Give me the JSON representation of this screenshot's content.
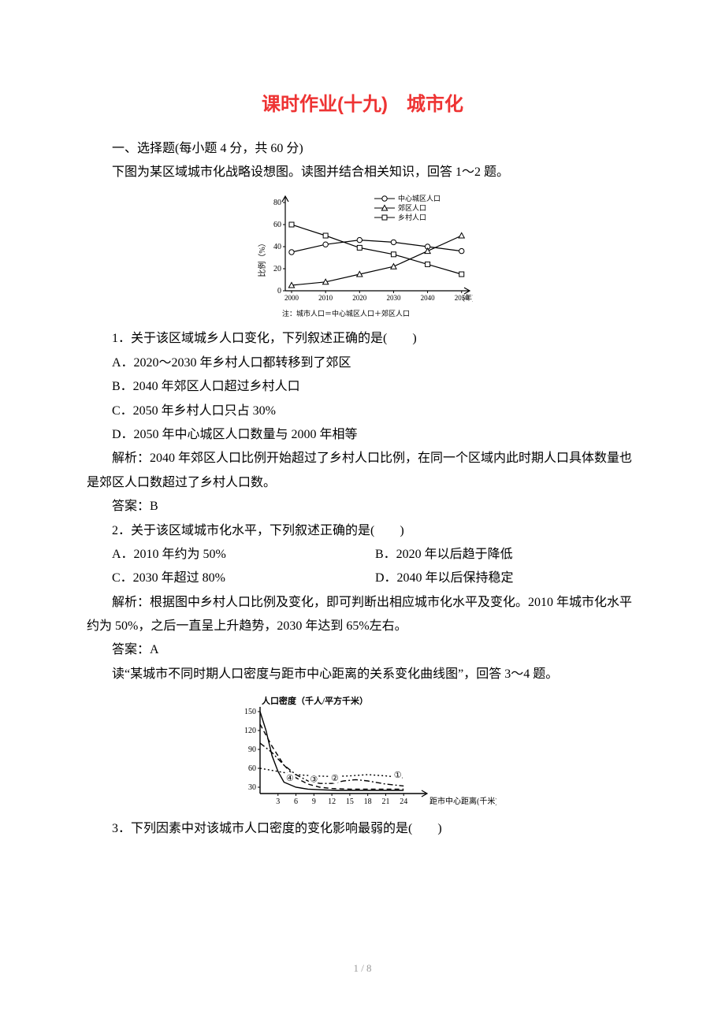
{
  "title": "课时作业(十九)　城市化",
  "section1": "一、选择题(每小题 4 分，共 60 分)",
  "intro1": "下图为某区域城市化战略设想图。读图并结合相关知识，回答 1～2 题。",
  "chart1": {
    "type": "line",
    "x_label": "(年)",
    "y_label": "比例（%）",
    "note": "注：城市人口＝中心城区人口＋郊区人口",
    "x_ticks": [
      "2000",
      "2010",
      "2020",
      "2030",
      "2040",
      "2050"
    ],
    "y_ticks": [
      "0",
      "20",
      "40",
      "60",
      "80"
    ],
    "ylim": [
      0,
      85
    ],
    "legend": [
      "中心城区人口",
      "郊区人口",
      "乡村人口"
    ],
    "series": {
      "center": {
        "marker": "circle",
        "values": [
          35,
          42,
          46,
          44,
          40,
          36
        ]
      },
      "suburb": {
        "marker": "triangle",
        "values": [
          5,
          8,
          15,
          22,
          36,
          50
        ]
      },
      "rural": {
        "marker": "square",
        "values": [
          60,
          50,
          39,
          33,
          24,
          15
        ]
      }
    },
    "stroke_color": "#000000",
    "stroke_width": 1.2,
    "font_size": 10,
    "bg": "#ffffff"
  },
  "q1": "1．关于该区域城乡人口变化，下列叙述正确的是(　　)",
  "q1A": "A．2020～2030 年乡村人口都转移到了郊区",
  "q1B": "B．2040 年郊区人口超过乡村人口",
  "q1C": "C．2050 年乡村人口只占 30%",
  "q1D": "D．2050 年中心城区人口数量与 2000 年相等",
  "exp1": "解析：2040 年郊区人口比例开始超过了乡村人口比例，在同一个区域内此时期人口具体数量也是郊区人口数超过了乡村人口数。",
  "ans1": "答案：B",
  "q2": "2．关于该区域城市化水平，下列叙述正确的是(　　)",
  "q2A": "A．2010 年约为 50%",
  "q2B": "B．2020 年以后趋于降低",
  "q2C": "C．2030 年超过 80%",
  "q2D": "D．2040 年以后保持稳定",
  "exp2a": "解析：根据图中乡村人口比例及变化，即可判断出相应城市化水平及变化。2010 年城市化水平约为 50%，之后一直呈上升趋势，2030 年达到 65%左右。",
  "ans2": "答案：A",
  "intro3": "读“某城市不同时期人口密度与距市中心距离的关系变化曲线图”，回答 3～4 题。",
  "chart2": {
    "type": "line",
    "title": "人口密度（千人/平方千米）",
    "x_label": "距市中心距离(千米)",
    "y_ticks": [
      "30",
      "60",
      "90",
      "120",
      "150"
    ],
    "x_ticks": [
      "3",
      "6",
      "9",
      "12",
      "15",
      "18",
      "21",
      "24"
    ],
    "ylim": [
      20,
      155
    ],
    "xlim": [
      0,
      27
    ],
    "curves": {
      "c1": {
        "label": "①",
        "style": "dotted",
        "pts": [
          [
            0,
            60
          ],
          [
            3,
            55
          ],
          [
            6,
            50
          ],
          [
            9,
            48
          ],
          [
            12,
            47
          ],
          [
            15,
            48
          ],
          [
            18,
            50
          ],
          [
            21,
            48
          ],
          [
            24,
            45
          ]
        ]
      },
      "c2": {
        "label": "②",
        "style": "dashed-dot",
        "pts": [
          [
            0,
            100
          ],
          [
            2,
            85
          ],
          [
            4,
            65
          ],
          [
            6,
            50
          ],
          [
            8,
            40
          ],
          [
            10,
            36
          ],
          [
            12,
            36
          ],
          [
            14,
            40
          ],
          [
            16,
            42
          ],
          [
            18,
            40
          ],
          [
            21,
            35
          ],
          [
            24,
            32
          ]
        ]
      },
      "c3": {
        "label": "③",
        "style": "dashed",
        "pts": [
          [
            0,
            130
          ],
          [
            2,
            95
          ],
          [
            4,
            65
          ],
          [
            6,
            45
          ],
          [
            8,
            35
          ],
          [
            10,
            30
          ],
          [
            12,
            28
          ],
          [
            15,
            27
          ],
          [
            18,
            27
          ],
          [
            21,
            27
          ],
          [
            24,
            27
          ]
        ]
      },
      "c4": {
        "label": "④",
        "style": "solid",
        "pts": [
          [
            0,
            150
          ],
          [
            1,
            120
          ],
          [
            2,
            80
          ],
          [
            3,
            55
          ],
          [
            4,
            38
          ],
          [
            6,
            30
          ],
          [
            8,
            27
          ],
          [
            10,
            26
          ],
          [
            13,
            25
          ],
          [
            16,
            25
          ],
          [
            20,
            25
          ],
          [
            24,
            25
          ]
        ]
      }
    },
    "stroke_color": "#000000",
    "bg": "#ffffff",
    "font_size": 11
  },
  "q3": "3．下列因素中对该城市人口密度的变化影响最弱的是(　　)",
  "page_num": "1 / 8",
  "colors": {
    "title": "#ee3333",
    "text": "#000000",
    "page_num": "#9a9a9a"
  }
}
